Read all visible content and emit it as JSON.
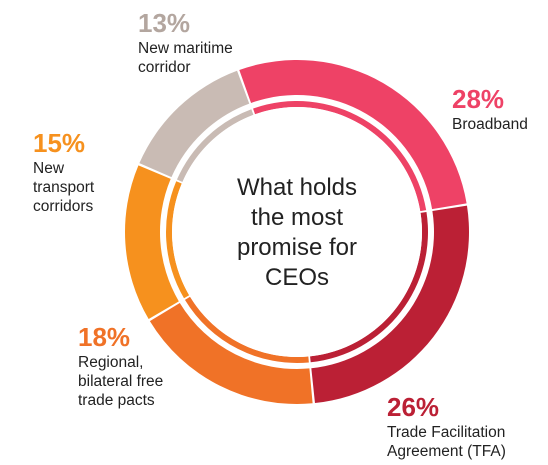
{
  "chart_data": {
    "type": "pie",
    "center_text": [
      "What holds",
      "the most",
      "promise for",
      "CEOs"
    ],
    "slices": [
      {
        "value": 28,
        "label": "28%",
        "name": [
          "Broadband"
        ],
        "color": "#EE4266"
      },
      {
        "value": 26,
        "label": "26%",
        "name": [
          "Trade Facilitation",
          "Agreement (TFA)"
        ],
        "color": "#BB2035"
      },
      {
        "value": 18,
        "label": "18%",
        "name": [
          "Regional,",
          "bilateral free",
          "trade pacts"
        ],
        "color": "#F07227"
      },
      {
        "value": 15,
        "label": "15%",
        "name": [
          "New",
          "transport",
          "corridors"
        ],
        "color": "#F6911E"
      },
      {
        "value": 13,
        "label": "13%",
        "name": [
          "New maritime",
          "corridor"
        ],
        "color": "#C9BBB4"
      }
    ],
    "label_placement": "outside"
  }
}
